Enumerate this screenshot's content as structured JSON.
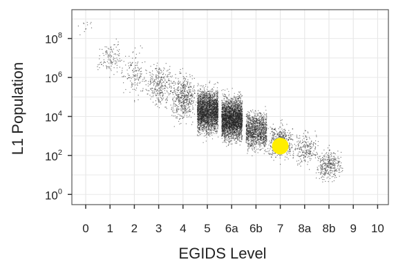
{
  "chart_data": {
    "type": "scatter",
    "title": "",
    "xlabel": "EGIDS Level",
    "ylabel": "L1 Population",
    "x_categories": [
      "0",
      "1",
      "2",
      "3",
      "4",
      "5",
      "6a",
      "6b",
      "7",
      "8a",
      "8b",
      "9",
      "10"
    ],
    "y_scale": "log10",
    "ylim": [
      0.3,
      3000000000
    ],
    "y_ticks": [
      {
        "value": 1,
        "base": "10",
        "exp": "0"
      },
      {
        "value": 100,
        "base": "10",
        "exp": "2"
      },
      {
        "value": 10000,
        "base": "10",
        "exp": "4"
      },
      {
        "value": 1000000,
        "base": "10",
        "exp": "6"
      },
      {
        "value": 100000000,
        "base": "10",
        "exp": "8"
      }
    ],
    "grid": true,
    "legend": "none",
    "point_color": "#222222",
    "highlight_color": "#ffee00",
    "series": [
      {
        "category_distributions": [
          {
            "x": "0",
            "count": 12,
            "log10_median": 8.6,
            "log10_spread": 0.4
          },
          {
            "x": "1",
            "count": 120,
            "log10_median": 7.0,
            "log10_spread": 0.7
          },
          {
            "x": "2",
            "count": 140,
            "log10_median": 6.2,
            "log10_spread": 0.9
          },
          {
            "x": "3",
            "count": 300,
            "log10_median": 5.6,
            "log10_spread": 0.9
          },
          {
            "x": "4",
            "count": 500,
            "log10_median": 5.0,
            "log10_spread": 0.9
          },
          {
            "x": "5",
            "count": 2600,
            "log10_median": 4.3,
            "log10_spread": 0.85
          },
          {
            "x": "6a",
            "count": 2900,
            "log10_median": 3.9,
            "log10_spread": 0.85
          },
          {
            "x": "6b",
            "count": 1200,
            "log10_median": 3.3,
            "log10_spread": 0.75
          },
          {
            "x": "7",
            "count": 450,
            "log10_median": 2.7,
            "log10_spread": 0.7
          },
          {
            "x": "8a",
            "count": 220,
            "log10_median": 2.4,
            "log10_spread": 0.7
          },
          {
            "x": "8b",
            "count": 320,
            "log10_median": 1.5,
            "log10_spread": 0.6
          }
        ]
      }
    ],
    "highlight_point": {
      "x": "7",
      "y": 300
    }
  }
}
